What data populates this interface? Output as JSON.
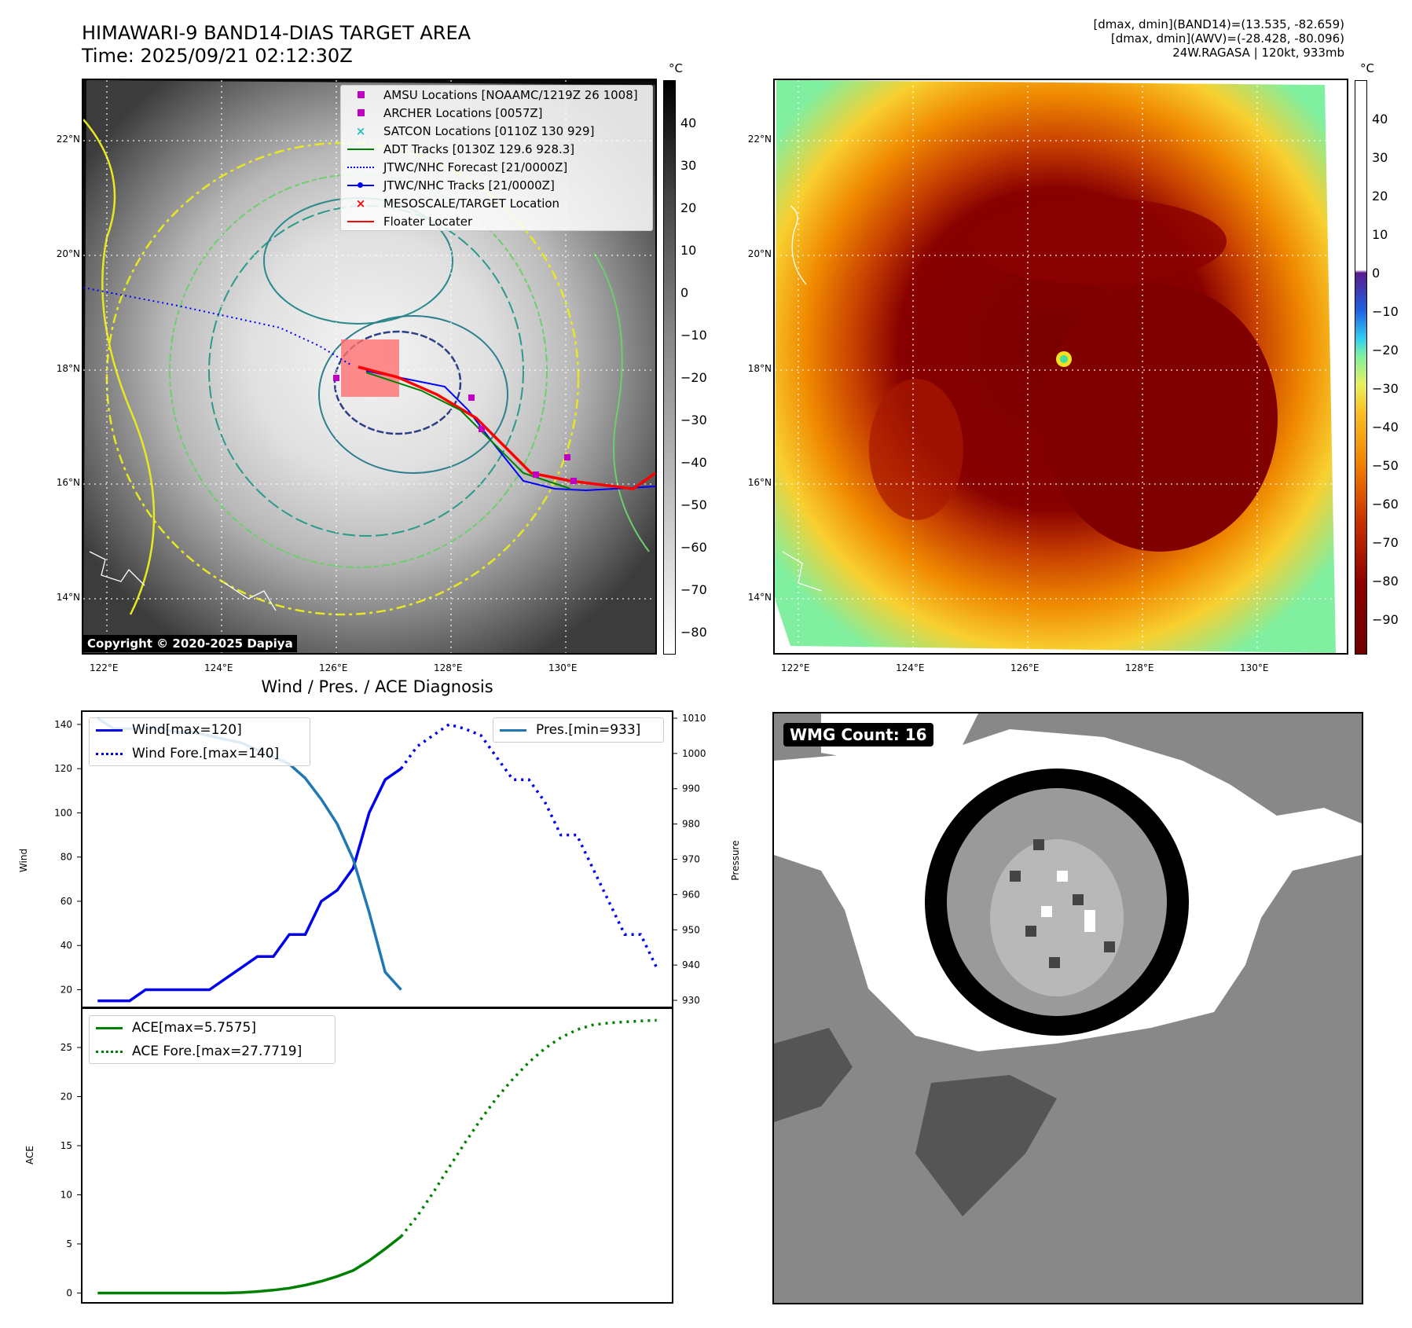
{
  "header": {
    "title_line1": "HIMAWARI-9 BAND14-DIAS TARGET AREA",
    "title_line2": "Time: 2025/09/21 02:12:30Z",
    "stats_line1": "[dmax, dmin](BAND14)=(13.535, -82.659)",
    "stats_line2": "[dmax, dmin](AWV)=(-28.428, -80.096)",
    "stats_line3": "24W.RAGASA | 120kt, 933mb"
  },
  "map_common": {
    "lat_ticks": [
      "22°N",
      "20°N",
      "18°N",
      "16°N",
      "14°N"
    ],
    "lon_ticks": [
      "122°E",
      "124°E",
      "126°E",
      "128°E",
      "130°E"
    ]
  },
  "ir_panel": {
    "copyright": "Copyright © 2020-2025 Dapiya",
    "colorbar_unit": "°C",
    "colorbar_ticks": [
      "40",
      "30",
      "20",
      "10",
      "0",
      "−10",
      "−20",
      "−30",
      "−40",
      "−50",
      "−60",
      "−70",
      "−80"
    ],
    "legend": [
      {
        "label": "AMSU Locations [NOAAMC/1219Z 26 1008]",
        "marker": "square",
        "color": "#c000c0"
      },
      {
        "label": "ARCHER Locations [0057Z]",
        "marker": "square",
        "color": "#c000c0"
      },
      {
        "label": "SATCON Locations [0110Z 130 929]",
        "marker": "x",
        "color": "#20c0c0"
      },
      {
        "label": "ADT Tracks [0130Z 129.6 928.3]",
        "marker": "line",
        "color": "#008000"
      },
      {
        "label": "JTWC/NHC Forecast [21/0000Z]",
        "marker": "dotted",
        "color": "#0000ff"
      },
      {
        "label": "JTWC/NHC Tracks [21/0000Z]",
        "marker": "line-dot",
        "color": "#0000ff"
      },
      {
        "label": "MESOSCALE/TARGET Location",
        "marker": "x",
        "color": "#ff0000"
      },
      {
        "label": "Floater Locater",
        "marker": "line",
        "color": "#ff0000"
      }
    ]
  },
  "awv_panel": {
    "colorbar_unit": "°C",
    "colorbar_ticks": [
      "40",
      "30",
      "20",
      "10",
      "0",
      "−10",
      "−20",
      "−30",
      "−40",
      "−50",
      "−60",
      "−70",
      "−80",
      "−90"
    ]
  },
  "wmg_panel": {
    "label": "WMG Count: 16"
  },
  "chart_data": [
    {
      "type": "line",
      "title": "Wind / Pres. / ACE Diagnosis",
      "ylabel": "Wind",
      "ylabel_right": "Pressure",
      "ylim": [
        12,
        146
      ],
      "ylim_right": [
        928,
        1012
      ],
      "yticks": [
        20,
        40,
        60,
        80,
        100,
        120,
        140
      ],
      "yticks_right": [
        930,
        940,
        950,
        960,
        970,
        980,
        990,
        1000,
        1010
      ],
      "xlim": [
        -1,
        36
      ],
      "legend_left": [
        "Wind[max=120]",
        "Wind Fore.[max=140]"
      ],
      "legend_right": [
        "Pres.[min=933]"
      ],
      "series": [
        {
          "name": "Wind[max=120]",
          "color": "#0000ee",
          "style": "solid",
          "x": [
            0,
            2,
            3,
            4,
            5,
            6,
            7,
            8,
            9,
            10,
            11,
            12,
            13,
            14,
            15,
            16,
            17,
            18,
            19
          ],
          "values": [
            15,
            15,
            20,
            20,
            20,
            20,
            20,
            25,
            30,
            35,
            35,
            45,
            45,
            60,
            65,
            75,
            100,
            115,
            120
          ]
        },
        {
          "name": "Wind Fore.[max=140]",
          "color": "#0000ee",
          "style": "dotted",
          "x": [
            19,
            20,
            21,
            22,
            23,
            24,
            25,
            26,
            27,
            28,
            29,
            30,
            31,
            32,
            33,
            34,
            35
          ],
          "values": [
            120,
            130,
            135,
            140,
            138,
            135,
            125,
            115,
            115,
            105,
            90,
            90,
            75,
            60,
            45,
            45,
            30
          ]
        },
        {
          "name": "Pres.[min=933]",
          "color": "#1f77b4",
          "style": "solid",
          "axis": "right",
          "x": [
            0,
            1,
            2,
            3,
            4,
            5,
            6,
            7,
            8,
            9,
            10,
            11,
            12,
            13,
            14,
            15,
            16,
            17,
            18,
            19
          ],
          "values": [
            1010,
            1007,
            1007,
            1007,
            1007,
            1006,
            1006,
            1005,
            1004,
            1003,
            1001,
            999,
            997,
            993,
            987,
            980,
            970,
            955,
            938,
            933
          ]
        }
      ]
    },
    {
      "type": "line",
      "ylabel": "ACE",
      "ylim": [
        -1,
        29
      ],
      "yticks": [
        0,
        5,
        10,
        15,
        20,
        25
      ],
      "xlim": [
        -1,
        36
      ],
      "legend": [
        "ACE[max=5.7575]",
        "ACE Fore.[max=27.7719]"
      ],
      "series": [
        {
          "name": "ACE[max=5.7575]",
          "color": "#008000",
          "style": "solid",
          "x": [
            0,
            2,
            4,
            6,
            8,
            9,
            10,
            11,
            12,
            13,
            14,
            15,
            16,
            17,
            18,
            19
          ],
          "values": [
            0,
            0,
            0,
            0,
            0,
            0.05,
            0.15,
            0.3,
            0.5,
            0.8,
            1.2,
            1.7,
            2.3,
            3.3,
            4.5,
            5.7575
          ]
        },
        {
          "name": "ACE Fore.[max=27.7719]",
          "color": "#008000",
          "style": "dotted",
          "x": [
            19,
            20,
            21,
            22,
            23,
            24,
            25,
            26,
            27,
            28,
            29,
            30,
            31,
            32,
            33,
            34,
            35
          ],
          "values": [
            5.7575,
            7.8,
            10.2,
            12.8,
            15.3,
            17.7,
            19.9,
            21.8,
            23.5,
            24.9,
            26.0,
            26.8,
            27.3,
            27.5,
            27.6,
            27.7,
            27.7719
          ]
        }
      ]
    }
  ]
}
